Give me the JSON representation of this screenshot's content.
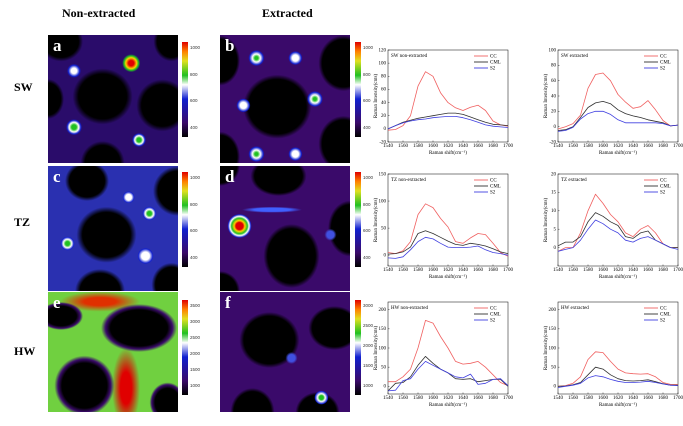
{
  "headers": {
    "col1": "Non-extracted",
    "col2": "Extracted"
  },
  "rows": [
    "SW",
    "TZ",
    "HW"
  ],
  "panels": [
    "a",
    "b",
    "c",
    "d",
    "e",
    "f"
  ],
  "colorbars": [
    [
      "400",
      "600",
      "800",
      "1000"
    ],
    [
      "400",
      "600",
      "800",
      "1000"
    ],
    [
      "400",
      "600",
      "800",
      "1000"
    ],
    [
      "400",
      "600",
      "800",
      "1000"
    ],
    [
      "1000",
      "1500",
      "2000",
      "2500",
      "3000",
      "3500"
    ],
    [
      "1000",
      "1500",
      "2000",
      "2500",
      "3000"
    ]
  ],
  "colors": {
    "CC": "#f06060",
    "CML": "#303030",
    "S2": "#4040e0"
  },
  "chart_data": [
    {
      "type": "line",
      "title": "SW non-extracted",
      "xlabel": "Raman shift(cm⁻¹)",
      "ylabel": "Raman Intensity(cnts)",
      "xlim": [
        1540,
        1700
      ],
      "ylim": [
        -20,
        120
      ],
      "xticks": [
        1540,
        1560,
        1580,
        1600,
        1620,
        1640,
        1660,
        1680,
        1700
      ],
      "yticks": [
        -20,
        0,
        20,
        40,
        60,
        80,
        100,
        120
      ],
      "x": [
        1540,
        1550,
        1560,
        1570,
        1580,
        1590,
        1600,
        1610,
        1620,
        1630,
        1640,
        1650,
        1660,
        1670,
        1680,
        1690,
        1700
      ],
      "series": [
        {
          "name": "CC",
          "values": [
            -2,
            -1,
            5,
            20,
            65,
            87,
            80,
            55,
            40,
            32,
            28,
            33,
            36,
            28,
            12,
            6,
            4
          ]
        },
        {
          "name": "CML",
          "values": [
            0,
            5,
            10,
            13,
            16,
            18,
            20,
            22,
            24,
            24,
            22,
            18,
            14,
            10,
            7,
            6,
            5
          ]
        },
        {
          "name": "S2",
          "values": [
            0,
            5,
            9,
            12,
            14,
            15,
            17,
            18,
            19,
            19,
            17,
            14,
            10,
            6,
            4,
            3,
            2
          ]
        }
      ],
      "legend": "top-right"
    },
    {
      "type": "line",
      "title": "SW extracted",
      "xlabel": "Raman shift(cm⁻¹)",
      "ylabel": "Raman Intensity(cnts)",
      "xlim": [
        1540,
        1700
      ],
      "ylim": [
        -20,
        100
      ],
      "xticks": [
        1540,
        1560,
        1580,
        1600,
        1620,
        1640,
        1660,
        1680,
        1700
      ],
      "yticks": [
        -20,
        0,
        20,
        40,
        60,
        80,
        100
      ],
      "x": [
        1540,
        1550,
        1560,
        1570,
        1580,
        1590,
        1600,
        1610,
        1620,
        1630,
        1640,
        1650,
        1660,
        1670,
        1680,
        1690,
        1700
      ],
      "series": [
        {
          "name": "CC",
          "values": [
            -3,
            0,
            4,
            15,
            50,
            68,
            70,
            60,
            42,
            32,
            24,
            26,
            34,
            22,
            8,
            1,
            2
          ]
        },
        {
          "name": "CML",
          "values": [
            -5,
            -4,
            0,
            12,
            25,
            31,
            33,
            30,
            22,
            17,
            14,
            12,
            9,
            7,
            5,
            1,
            2
          ]
        },
        {
          "name": "S2",
          "values": [
            -6,
            -5,
            -1,
            10,
            17,
            20,
            20,
            16,
            9,
            5,
            5,
            5,
            5,
            5,
            4,
            1,
            2
          ]
        }
      ],
      "legend": "top-right"
    },
    {
      "type": "line",
      "title": "TZ non-extracted",
      "xlabel": "Raman shift(cm⁻¹)",
      "ylabel": "Raman Intensity(cnts)",
      "xlim": [
        1540,
        1700
      ],
      "ylim": [
        -20,
        150
      ],
      "xticks": [
        1540,
        1560,
        1580,
        1600,
        1620,
        1640,
        1660,
        1680,
        1700
      ],
      "yticks": [
        0,
        50,
        100,
        150
      ],
      "x": [
        1540,
        1550,
        1560,
        1570,
        1580,
        1590,
        1600,
        1610,
        1620,
        1630,
        1640,
        1650,
        1660,
        1670,
        1680,
        1690,
        1700
      ],
      "series": [
        {
          "name": "CC",
          "values": [
            5,
            3,
            8,
            25,
            75,
            95,
            88,
            68,
            52,
            25,
            22,
            32,
            40,
            38,
            22,
            5,
            -2
          ]
        },
        {
          "name": "CML",
          "values": [
            2,
            3,
            6,
            15,
            40,
            45,
            40,
            33,
            26,
            20,
            18,
            22,
            20,
            17,
            12,
            6,
            3
          ]
        },
        {
          "name": "S2",
          "values": [
            -5,
            -6,
            -3,
            10,
            25,
            33,
            30,
            22,
            15,
            14,
            14,
            15,
            17,
            10,
            5,
            3,
            0
          ]
        }
      ],
      "legend": "top-right"
    },
    {
      "type": "line",
      "title": "TZ extracted",
      "xlabel": "Raman shift(cm⁻¹)",
      "ylabel": "Raman Intensity(cnts)",
      "xlim": [
        1540,
        1700
      ],
      "ylim": [
        -5,
        20
      ],
      "xticks": [
        1540,
        1560,
        1580,
        1600,
        1620,
        1640,
        1660,
        1680,
        1700
      ],
      "yticks": [
        0,
        5,
        10,
        15,
        20
      ],
      "x": [
        1540,
        1550,
        1560,
        1570,
        1580,
        1590,
        1600,
        1610,
        1620,
        1630,
        1640,
        1650,
        1660,
        1670,
        1680,
        1690,
        1700
      ],
      "series": [
        {
          "name": "CC",
          "values": [
            -1,
            0,
            0,
            4,
            10,
            14.5,
            12,
            9,
            7,
            4,
            3,
            5,
            6,
            4,
            1,
            0,
            0
          ]
        },
        {
          "name": "CML",
          "values": [
            0.5,
            1.5,
            1.5,
            3,
            7,
            9.5,
            8.5,
            7,
            6,
            3,
            2.5,
            4,
            4.5,
            2,
            1,
            0,
            0
          ]
        },
        {
          "name": "S2",
          "values": [
            -1,
            -0.5,
            0,
            2,
            5,
            7.5,
            6.5,
            5,
            4,
            2,
            1.5,
            2.5,
            3,
            2,
            1,
            0,
            -0.5
          ]
        }
      ],
      "legend": "top-right"
    },
    {
      "type": "line",
      "title": "HW non-extracted",
      "xlabel": "Raman shift(cm⁻¹)",
      "ylabel": "Raman Intensity(cnts)",
      "xlim": [
        1540,
        1700
      ],
      "ylim": [
        -20,
        220
      ],
      "xticks": [
        1540,
        1560,
        1580,
        1600,
        1620,
        1640,
        1660,
        1680,
        1700
      ],
      "yticks": [
        0,
        50,
        100,
        150,
        200
      ],
      "x": [
        1540,
        1550,
        1560,
        1570,
        1580,
        1590,
        1600,
        1610,
        1620,
        1630,
        1640,
        1650,
        1660,
        1670,
        1680,
        1690,
        1700
      ],
      "series": [
        {
          "name": "CC",
          "values": [
            12,
            12,
            25,
            45,
            100,
            172,
            165,
            130,
            100,
            65,
            58,
            60,
            65,
            50,
            30,
            10,
            2
          ]
        },
        {
          "name": "CML",
          "values": [
            -12,
            8,
            10,
            25,
            55,
            78,
            60,
            45,
            35,
            20,
            18,
            20,
            12,
            15,
            18,
            18,
            0
          ]
        },
        {
          "name": "S2",
          "values": [
            -12,
            -10,
            15,
            20,
            45,
            65,
            55,
            45,
            35,
            25,
            22,
            32,
            5,
            8,
            18,
            20,
            2
          ]
        }
      ],
      "legend": "top-right"
    },
    {
      "type": "line",
      "title": "HW extracted",
      "xlabel": "Raman shift(cm⁻¹)",
      "ylabel": "Raman Intensity(cnts)",
      "xlim": [
        1540,
        1700
      ],
      "ylim": [
        -20,
        220
      ],
      "xticks": [
        1540,
        1560,
        1580,
        1600,
        1620,
        1640,
        1660,
        1680,
        1700
      ],
      "yticks": [
        0,
        50,
        100,
        150,
        200
      ],
      "x": [
        1540,
        1550,
        1560,
        1570,
        1580,
        1590,
        1600,
        1610,
        1620,
        1630,
        1640,
        1650,
        1660,
        1670,
        1680,
        1690,
        1700
      ],
      "series": [
        {
          "name": "CC",
          "values": [
            0,
            2,
            8,
            25,
            70,
            90,
            88,
            65,
            45,
            35,
            33,
            32,
            33,
            25,
            10,
            5,
            5
          ]
        },
        {
          "name": "CML",
          "values": [
            0,
            1,
            4,
            10,
            30,
            50,
            45,
            30,
            20,
            15,
            14,
            15,
            17,
            12,
            7,
            3,
            3
          ]
        },
        {
          "name": "S2",
          "values": [
            -3,
            0,
            3,
            8,
            22,
            28,
            25,
            18,
            13,
            10,
            10,
            11,
            13,
            10,
            6,
            3,
            2
          ]
        }
      ],
      "legend": "top-right"
    }
  ]
}
